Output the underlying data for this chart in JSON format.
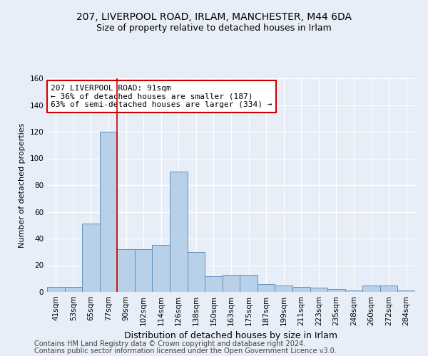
{
  "title1": "207, LIVERPOOL ROAD, IRLAM, MANCHESTER, M44 6DA",
  "title2": "Size of property relative to detached houses in Irlam",
  "xlabel": "Distribution of detached houses by size in Irlam",
  "ylabel": "Number of detached properties",
  "categories": [
    "41sqm",
    "53sqm",
    "65sqm",
    "77sqm",
    "90sqm",
    "102sqm",
    "114sqm",
    "126sqm",
    "138sqm",
    "150sqm",
    "163sqm",
    "175sqm",
    "187sqm",
    "199sqm",
    "211sqm",
    "223sqm",
    "235sqm",
    "248sqm",
    "260sqm",
    "272sqm",
    "284sqm"
  ],
  "values": [
    4,
    4,
    51,
    120,
    32,
    32,
    35,
    90,
    30,
    12,
    13,
    13,
    6,
    5,
    4,
    3,
    2,
    1,
    5,
    5,
    1
  ],
  "bar_color": "#b8d0e8",
  "bar_edge_color": "#6090c0",
  "vline_color": "#cc0000",
  "vline_x": 3.5,
  "marker_label": "207 LIVERPOOL ROAD: 91sqm",
  "annotation_line1": "← 36% of detached houses are smaller (187)",
  "annotation_line2": "63% of semi-detached houses are larger (334) →",
  "annotation_box_color": "#ffffff",
  "annotation_box_edge": "#cc0000",
  "ylim": [
    0,
    160
  ],
  "yticks": [
    0,
    20,
    40,
    60,
    80,
    100,
    120,
    140,
    160
  ],
  "background_color": "#e8eef7",
  "footer1": "Contains HM Land Registry data © Crown copyright and database right 2024.",
  "footer2": "Contains public sector information licensed under the Open Government Licence v3.0.",
  "title1_fontsize": 10,
  "title2_fontsize": 9,
  "xlabel_fontsize": 9,
  "ylabel_fontsize": 8,
  "tick_fontsize": 7.5,
  "annotation_fontsize": 8,
  "footer_fontsize": 7
}
